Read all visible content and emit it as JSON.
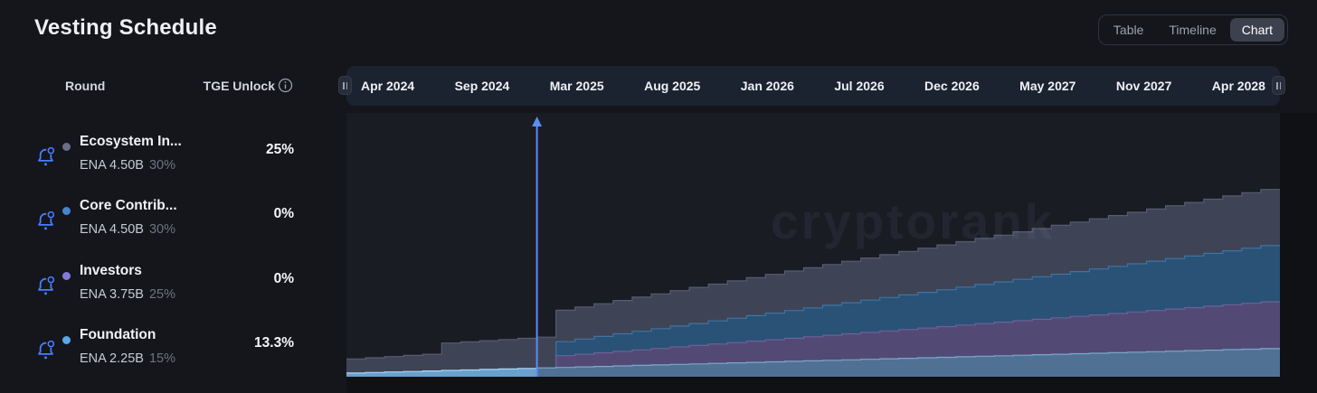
{
  "header": {
    "title": "Vesting Schedule",
    "tabs": [
      {
        "label": "Table",
        "active": false
      },
      {
        "label": "Timeline",
        "active": false
      },
      {
        "label": "Chart",
        "active": true
      }
    ]
  },
  "table": {
    "round_header": "Round",
    "tge_header": "TGE Unlock",
    "info_icon": "info-circle",
    "rows": [
      {
        "name": "Ecosystem In...",
        "amount": "ENA 4.50B",
        "supply_pct": "30%",
        "tge_unlock": "25%",
        "dot_color": "#6b6e85",
        "bell_icon": "notification-bell"
      },
      {
        "name": "Core Contrib...",
        "amount": "ENA 4.50B",
        "supply_pct": "30%",
        "tge_unlock": "0%",
        "dot_color": "#4485cc",
        "bell_icon": "notification-bell"
      },
      {
        "name": "Investors",
        "amount": "ENA 3.75B",
        "supply_pct": "25%",
        "tge_unlock": "0%",
        "dot_color": "#8579e0",
        "bell_icon": "notification-bell"
      },
      {
        "name": "Foundation",
        "amount": "ENA 2.25B",
        "supply_pct": "15%",
        "tge_unlock": "13.3%",
        "dot_color": "#5aa7e8",
        "bell_icon": "notification-bell"
      }
    ]
  },
  "timeline": {
    "labels": [
      "Apr 2024",
      "Sep 2024",
      "Mar 2025",
      "Aug 2025",
      "Jan 2026",
      "Jul 2026",
      "Dec 2026",
      "May 2027",
      "Nov 2027",
      "Apr 2028"
    ]
  },
  "watermark": "cryptorank",
  "colors": {
    "page_bg": "#14161b",
    "plot_bg": "#191c23",
    "chart_margin_bg": "#0f1115",
    "timeline_bar_bg": "#1c2330",
    "tab_active_bg": "#3b414d",
    "accent_blue": "#4a7dfe",
    "marker_line": "#5a8df2"
  },
  "chart_data": {
    "type": "area",
    "stacked": true,
    "title": "",
    "xlabel": "",
    "ylabel": "",
    "unit": "billions of ENA tokens unlocked (cumulative)",
    "ylim": [
      0,
      15
    ],
    "x_start": "Apr 2024",
    "x_end": "Apr 2028",
    "months_total": 49,
    "x_tick_labels": [
      "Apr 2024",
      "Sep 2024",
      "Mar 2025",
      "Aug 2025",
      "Jan 2026",
      "Jul 2026",
      "Dec 2026",
      "May 2027",
      "Nov 2027",
      "Apr 2028"
    ],
    "grid": false,
    "legend_position": "left-panel",
    "marker": {
      "name": "current-date-line",
      "month_index": 10,
      "color": "#5a8df2"
    },
    "series": [
      {
        "name": "Foundation",
        "total_b": 2.25,
        "color": "#507194",
        "stroke": "#7ba7ca",
        "past_color": "#69a0cc",
        "past_stroke": "#a9d6f7",
        "values": [
          0.3,
          0.341,
          0.381,
          0.422,
          0.463,
          0.503,
          0.544,
          0.584,
          0.625,
          0.666,
          0.706,
          0.747,
          0.788,
          0.828,
          0.869,
          0.909,
          0.95,
          0.991,
          1.031,
          1.072,
          1.113,
          1.153,
          1.194,
          1.234,
          1.275,
          1.316,
          1.356,
          1.397,
          1.438,
          1.478,
          1.519,
          1.559,
          1.6,
          1.641,
          1.681,
          1.722,
          1.763,
          1.803,
          1.844,
          1.884,
          1.925,
          1.966,
          2.006,
          2.047,
          2.088,
          2.128,
          2.169,
          2.209,
          2.25
        ]
      },
      {
        "name": "Investors",
        "total_b": 3.75,
        "color": "#524a75",
        "stroke": "#6b6297",
        "values": [
          0,
          0,
          0,
          0,
          0,
          0,
          0,
          0,
          0,
          0,
          0,
          0.938,
          1.014,
          1.09,
          1.166,
          1.242,
          1.318,
          1.394,
          1.47,
          1.546,
          1.622,
          1.698,
          1.774,
          1.85,
          1.926,
          2.002,
          2.078,
          2.155,
          2.231,
          2.307,
          2.383,
          2.459,
          2.535,
          2.611,
          2.687,
          2.763,
          2.839,
          2.915,
          2.991,
          3.067,
          3.143,
          3.219,
          3.295,
          3.371,
          3.447,
          3.524,
          3.6,
          3.676,
          3.75
        ]
      },
      {
        "name": "Core Contributors",
        "total_b": 4.5,
        "color": "#2a5176",
        "stroke": "#3f74a3",
        "values": [
          0,
          0,
          0,
          0,
          0,
          0,
          0,
          0,
          0,
          0,
          0,
          1.125,
          1.216,
          1.307,
          1.399,
          1.49,
          1.581,
          1.672,
          1.764,
          1.855,
          1.946,
          2.037,
          2.128,
          2.22,
          2.311,
          2.402,
          2.493,
          2.585,
          2.676,
          2.767,
          2.858,
          2.949,
          3.041,
          3.132,
          3.223,
          3.314,
          3.405,
          3.497,
          3.588,
          3.679,
          3.77,
          3.861,
          3.953,
          4.044,
          4.135,
          4.226,
          4.318,
          4.409,
          4.5
        ]
      },
      {
        "name": "Ecosystem Incentives",
        "total_b": 4.5,
        "color": "#3e4455",
        "stroke": "#565d72",
        "values": [
          1.125,
          1.179,
          1.232,
          1.286,
          1.34,
          2.193,
          2.247,
          2.301,
          2.354,
          2.408,
          2.461,
          2.515,
          2.569,
          2.622,
          2.676,
          2.73,
          2.783,
          2.837,
          2.891,
          2.944,
          2.998,
          3.052,
          3.105,
          3.159,
          3.213,
          3.266,
          3.32,
          3.373,
          3.427,
          3.481,
          3.534,
          3.588,
          3.642,
          3.695,
          3.749,
          3.803,
          3.856,
          3.91,
          3.963,
          4.017,
          4.071,
          4.124,
          4.178,
          4.232,
          4.285,
          4.339,
          4.393,
          4.446,
          4.5
        ]
      }
    ]
  }
}
